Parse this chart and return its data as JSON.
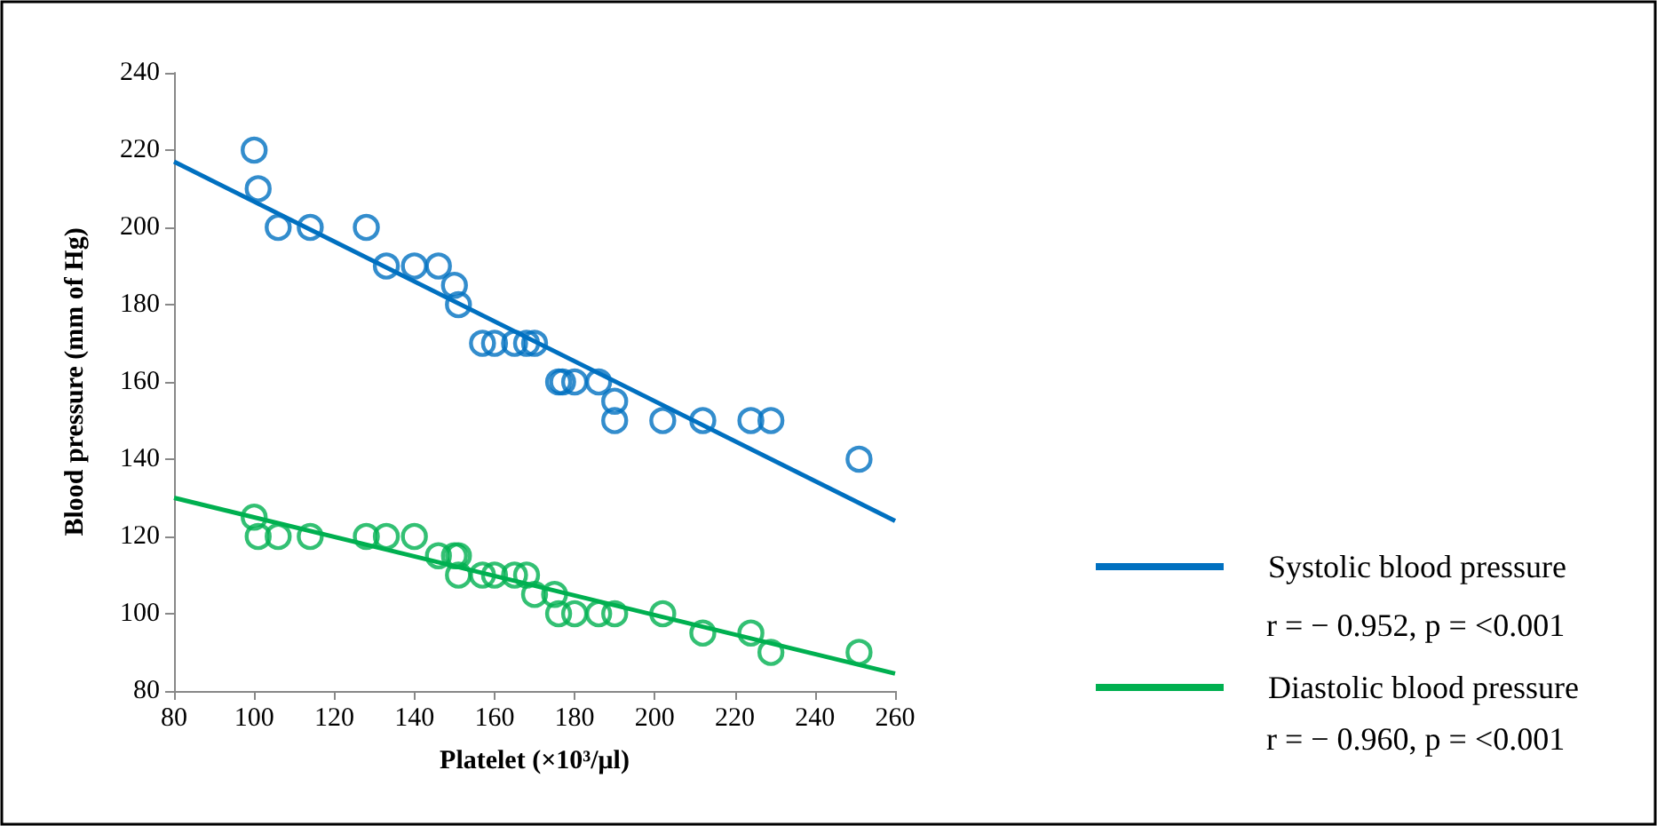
{
  "chart_data": {
    "type": "scatter",
    "xlabel": "Platelet (×10³/μl)",
    "ylabel": "Blood pressure (mm of Hg)",
    "xlim": [
      80,
      260
    ],
    "xticks": [
      80,
      100,
      120,
      140,
      160,
      180,
      200,
      220,
      240,
      260
    ],
    "ylim": [
      80,
      240
    ],
    "yticks": [
      80,
      100,
      120,
      140,
      160,
      180,
      200,
      220,
      240
    ],
    "grid": false,
    "legend": "right",
    "marker": "circle",
    "annotations": [
      "r = − 0.952, p = <0.001",
      "r = − 0.960, p = <0.001"
    ],
    "series": [
      {
        "color": "#0070c0",
        "x": [
          100,
          101,
          106,
          114,
          128,
          133,
          140,
          146,
          150,
          151,
          157,
          160,
          165,
          168,
          170,
          176,
          177,
          180,
          186,
          190,
          190,
          202,
          212,
          224,
          229,
          251
        ],
        "values": [
          220,
          210,
          200,
          200,
          200,
          190,
          190,
          190,
          185,
          180,
          170,
          170,
          170,
          170,
          170,
          160,
          160,
          160,
          160,
          155,
          150,
          150,
          150,
          150,
          150,
          140
        ]
      },
      {
        "color": "#00b050",
        "x": [
          100,
          101,
          106,
          114,
          128,
          133,
          140,
          146,
          150,
          151,
          151,
          157,
          160,
          165,
          168,
          170,
          175,
          176,
          180,
          186,
          190,
          202,
          212,
          224,
          229,
          251
        ],
        "values": [
          125,
          120,
          120,
          120,
          120,
          120,
          120,
          115,
          115,
          115,
          110,
          110,
          110,
          110,
          110,
          105,
          105,
          100,
          100,
          100,
          100,
          100,
          95,
          95,
          90,
          90
        ]
      },
      {
        "type": "line",
        "name": "Systolic blood pressure",
        "color": "#0070c0",
        "marker": "none",
        "x": [
          80,
          260
        ],
        "values": [
          217,
          124
        ]
      },
      {
        "type": "line",
        "name": "Diastolic blood pressure",
        "color": "#00b050",
        "marker": "none",
        "x": [
          80,
          260
        ],
        "values": [
          130,
          84.5
        ]
      }
    ]
  }
}
